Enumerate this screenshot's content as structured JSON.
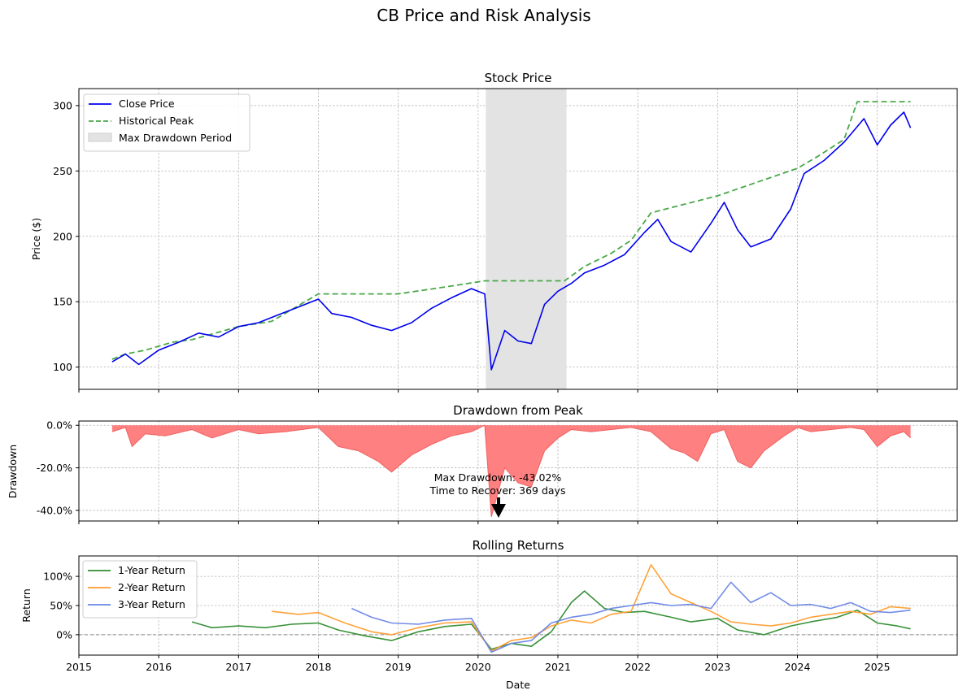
{
  "figure": {
    "suptitle": "CB Price and Risk Analysis"
  },
  "colors": {
    "close": "#0000ee",
    "peak": "#4aa84a",
    "drawdown_fill": "#ff8080",
    "drawdown_line": "#f06060",
    "drawdown_period": "#e3e3e3",
    "r1": "#2e8b2e",
    "r2": "#ff9d2e",
    "r3": "#6a86e6",
    "zero_line": "#888888"
  },
  "chart_data": [
    {
      "type": "line",
      "title": "Stock Price",
      "xlabel": "",
      "ylabel": "Price ($)",
      "xlim": [
        "2015-01-01",
        "2025-12-31"
      ],
      "ylim": [
        83,
        313
      ],
      "x_ticks": [
        "2015",
        "2016",
        "2017",
        "2018",
        "2019",
        "2020",
        "2021",
        "2022",
        "2023",
        "2024",
        "2025"
      ],
      "y_ticks": [
        "100",
        "150",
        "200",
        "250",
        "300"
      ],
      "grid": true,
      "legend_position": "top-left",
      "legend": [
        "Close Price",
        "Historical Peak",
        "Max Drawdown Period"
      ],
      "max_drawdown_period": [
        "2020-02-06",
        "2021-02-10"
      ],
      "series": [
        {
          "name": "Close Price",
          "x": [
            "2015-06",
            "2015-08",
            "2015-10",
            "2016-01",
            "2016-04",
            "2016-07",
            "2016-10",
            "2017-01",
            "2017-04",
            "2017-07",
            "2017-10",
            "2018-01",
            "2018-03",
            "2018-06",
            "2018-09",
            "2018-12",
            "2019-03",
            "2019-06",
            "2019-09",
            "2019-12",
            "2020-02",
            "2020-03",
            "2020-05",
            "2020-07",
            "2020-09",
            "2020-11",
            "2021-01",
            "2021-03",
            "2021-05",
            "2021-08",
            "2021-11",
            "2022-02",
            "2022-04",
            "2022-06",
            "2022-09",
            "2022-12",
            "2023-02",
            "2023-04",
            "2023-06",
            "2023-09",
            "2023-12",
            "2024-02",
            "2024-05",
            "2024-08",
            "2024-11",
            "2025-01",
            "2025-03",
            "2025-05",
            "2025-06"
          ],
          "y": [
            104,
            110,
            102,
            113,
            119,
            126,
            123,
            131,
            134,
            140,
            146,
            152,
            141,
            138,
            132,
            128,
            134,
            145,
            153,
            160,
            156,
            98,
            128,
            120,
            118,
            148,
            158,
            164,
            172,
            178,
            186,
            203,
            213,
            196,
            188,
            210,
            226,
            205,
            192,
            198,
            221,
            248,
            258,
            272,
            290,
            270,
            285,
            295,
            283
          ]
        },
        {
          "name": "Historical Peak",
          "x": [
            "2015-06",
            "2015-08",
            "2015-11",
            "2016-03",
            "2016-06",
            "2017-01",
            "2017-06",
            "2018-01",
            "2019-01",
            "2019-09",
            "2020-02",
            "2021-02",
            "2021-05",
            "2021-09",
            "2021-12",
            "2022-03",
            "2023-01",
            "2024-01",
            "2024-04",
            "2024-08",
            "2024-10",
            "2025-06"
          ],
          "y": [
            106,
            110,
            113,
            119,
            121,
            131,
            135,
            156,
            156,
            162,
            166,
            166,
            177,
            187,
            197,
            218,
            231,
            252,
            261,
            274,
            303,
            303
          ]
        }
      ]
    },
    {
      "type": "area",
      "title": "Drawdown from Peak",
      "xlabel": "",
      "ylabel": "Drawdown",
      "xlim": [
        "2015-01-01",
        "2025-12-31"
      ],
      "ylim": [
        -45,
        2
      ],
      "y_ticks": [
        "0.0%",
        "-20.0%",
        "-40.0%"
      ],
      "grid": true,
      "annotation": {
        "line1": "Max Drawdown: -43.02%",
        "line2": "Time to Recover: 369 days",
        "x": "2020-03-23",
        "y": -43.02
      },
      "series": [
        {
          "name": "Drawdown",
          "x": [
            "2015-06",
            "2015-08",
            "2015-09",
            "2015-11",
            "2016-02",
            "2016-06",
            "2016-09",
            "2017-01",
            "2017-04",
            "2017-08",
            "2018-01",
            "2018-04",
            "2018-07",
            "2018-10",
            "2018-12",
            "2019-03",
            "2019-06",
            "2019-09",
            "2019-12",
            "2020-02",
            "2020-03",
            "2020-05",
            "2020-07",
            "2020-09",
            "2020-11",
            "2021-01",
            "2021-03",
            "2021-06",
            "2021-09",
            "2021-12",
            "2022-03",
            "2022-06",
            "2022-08",
            "2022-10",
            "2022-12",
            "2023-02",
            "2023-04",
            "2023-06",
            "2023-08",
            "2023-11",
            "2024-01",
            "2024-03",
            "2024-06",
            "2024-09",
            "2024-11",
            "2025-01",
            "2025-03",
            "2025-05",
            "2025-06"
          ],
          "y": [
            -3,
            -1,
            -10,
            -4,
            -5,
            -2,
            -6,
            -2,
            -4,
            -3,
            -1,
            -10,
            -12,
            -17,
            -22,
            -14,
            -9,
            -5,
            -3,
            0,
            -43,
            -20,
            -27,
            -29,
            -12,
            -6,
            -2,
            -3,
            -2,
            -1,
            -3,
            -11,
            -13,
            -17,
            -4,
            -2,
            -17,
            -20,
            -12,
            -5,
            -1,
            -3,
            -2,
            -1,
            -2,
            -10,
            -5,
            -3,
            -6
          ]
        }
      ]
    },
    {
      "type": "line",
      "title": "Rolling Returns",
      "xlabel": "Date",
      "ylabel": "Return",
      "xlim": [
        "2015-01-01",
        "2025-12-31"
      ],
      "ylim": [
        -35,
        135
      ],
      "y_ticks": [
        "0%",
        "50%",
        "100%"
      ],
      "x_ticks": [
        "2015",
        "2016",
        "2017",
        "2018",
        "2019",
        "2020",
        "2021",
        "2022",
        "2023",
        "2024",
        "2025"
      ],
      "grid": true,
      "legend_position": "top-left",
      "legend": [
        "1-Year Return",
        "2-Year Return",
        "3-Year Return"
      ],
      "series": [
        {
          "name": "1-Year Return",
          "x": [
            "2016-06",
            "2016-09",
            "2017-01",
            "2017-05",
            "2017-09",
            "2018-01",
            "2018-04",
            "2018-08",
            "2018-12",
            "2019-04",
            "2019-08",
            "2019-12",
            "2020-03",
            "2020-06",
            "2020-09",
            "2020-12",
            "2021-03",
            "2021-05",
            "2021-08",
            "2021-11",
            "2022-02",
            "2022-06",
            "2022-09",
            "2023-01",
            "2023-04",
            "2023-08",
            "2023-12",
            "2024-03",
            "2024-07",
            "2024-10",
            "2025-01",
            "2025-04",
            "2025-06"
          ],
          "y": [
            22,
            12,
            15,
            12,
            18,
            20,
            8,
            -2,
            -10,
            5,
            14,
            18,
            -25,
            -15,
            -20,
            5,
            55,
            75,
            45,
            38,
            40,
            30,
            22,
            28,
            8,
            0,
            15,
            22,
            30,
            42,
            20,
            15,
            10
          ]
        },
        {
          "name": "2-Year Return",
          "x": [
            "2017-06",
            "2017-10",
            "2018-01",
            "2018-05",
            "2018-09",
            "2018-12",
            "2019-04",
            "2019-08",
            "2019-12",
            "2020-03",
            "2020-06",
            "2020-09",
            "2020-12",
            "2021-03",
            "2021-06",
            "2021-09",
            "2021-12",
            "2022-03",
            "2022-06",
            "2022-09",
            "2022-12",
            "2023-03",
            "2023-06",
            "2023-09",
            "2023-12",
            "2024-03",
            "2024-06",
            "2024-09",
            "2024-12",
            "2025-03",
            "2025-06"
          ],
          "y": [
            40,
            35,
            38,
            20,
            5,
            0,
            12,
            20,
            22,
            -28,
            -10,
            -5,
            15,
            25,
            20,
            35,
            40,
            120,
            70,
            55,
            40,
            22,
            18,
            15,
            20,
            30,
            35,
            40,
            35,
            48,
            45
          ]
        },
        {
          "name": "3-Year Return",
          "x": [
            "2018-06",
            "2018-09",
            "2018-12",
            "2019-04",
            "2019-08",
            "2019-12",
            "2020-03",
            "2020-06",
            "2020-09",
            "2020-12",
            "2021-03",
            "2021-06",
            "2021-09",
            "2021-12",
            "2022-03",
            "2022-06",
            "2022-09",
            "2022-12",
            "2023-03",
            "2023-06",
            "2023-09",
            "2023-12",
            "2024-03",
            "2024-06",
            "2024-09",
            "2024-12",
            "2025-03",
            "2025-06"
          ],
          "y": [
            45,
            30,
            20,
            18,
            25,
            28,
            -30,
            -15,
            -10,
            20,
            30,
            35,
            45,
            50,
            55,
            50,
            52,
            45,
            90,
            55,
            72,
            50,
            52,
            45,
            55,
            40,
            38,
            42
          ]
        }
      ]
    }
  ]
}
